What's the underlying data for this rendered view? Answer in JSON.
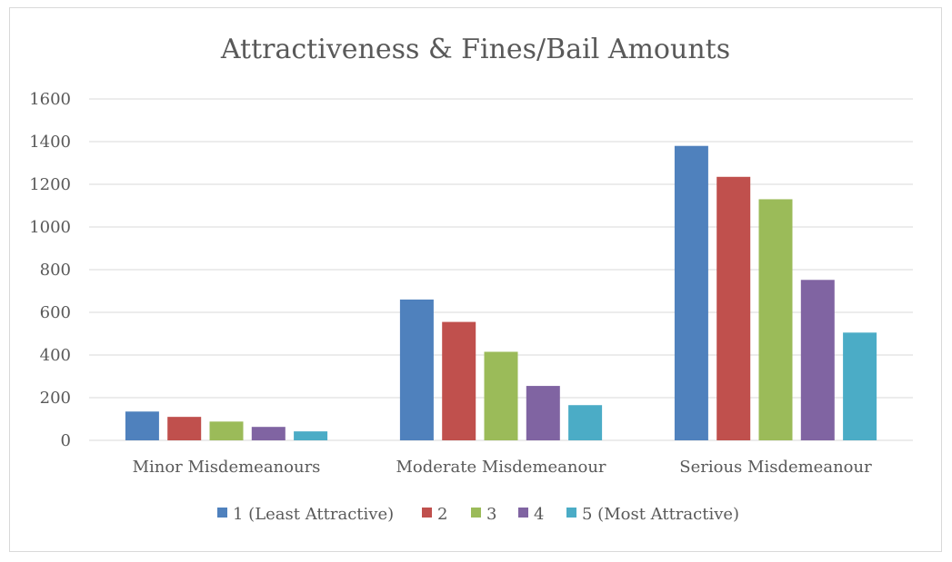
{
  "chart_data": {
    "type": "bar",
    "title": "Attractiveness & Fines/Bail Amounts",
    "xlabel": "",
    "ylabel": "",
    "ylim": [
      0,
      1600
    ],
    "yticks": [
      0,
      200,
      400,
      600,
      800,
      1000,
      1200,
      1400,
      1600
    ],
    "grid": true,
    "legend_position": "bottom",
    "categories": [
      "Minor Misdemeanours",
      "Moderate Misdemeanour",
      "Serious Misdemeanour"
    ],
    "series": [
      {
        "name": "1 (Least Attractive)",
        "color": "#4f81bd",
        "values": [
          135,
          660,
          1380
        ]
      },
      {
        "name": "2",
        "color": "#c0504d",
        "values": [
          110,
          555,
          1235
        ]
      },
      {
        "name": "3",
        "color": "#9bbb59",
        "values": [
          88,
          415,
          1130
        ]
      },
      {
        "name": "4",
        "color": "#8064a2",
        "values": [
          63,
          255,
          752
        ]
      },
      {
        "name": "5 (Most Attractive)",
        "color": "#4bacc6",
        "values": [
          42,
          165,
          505
        ]
      }
    ]
  }
}
